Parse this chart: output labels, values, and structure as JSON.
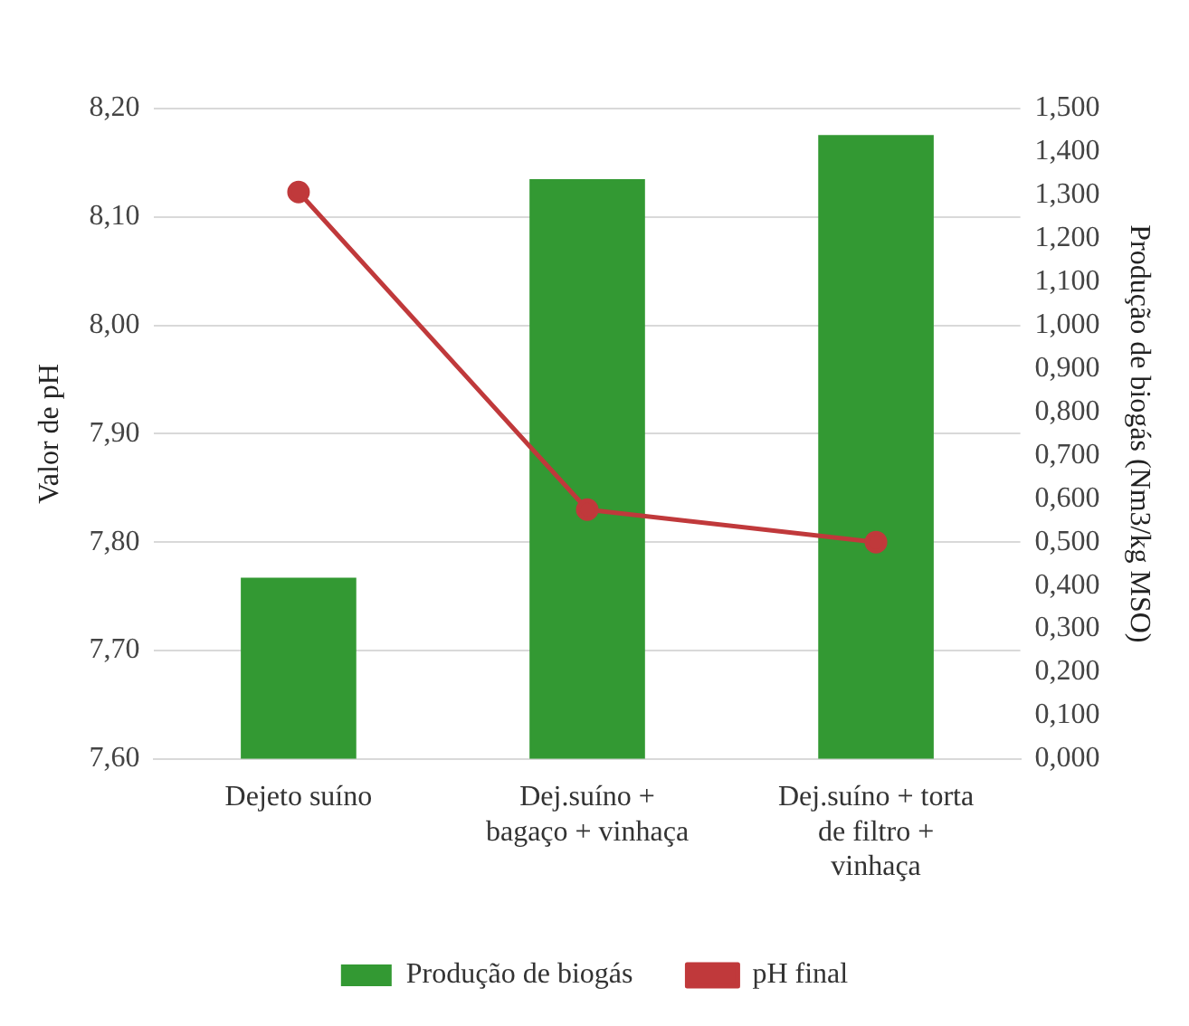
{
  "chart_data": {
    "type": "bar",
    "categories": [
      "Dejeto suíno",
      "Dej.suíno + bagaço + vinhaça",
      "Dej.suíno + torta de filtro + vinhaça"
    ],
    "series": [
      {
        "name": "Produção de biogás",
        "axis": "y2",
        "color": "#339933",
        "values": [
          0.418,
          1.337,
          1.439
        ]
      },
      {
        "name": "pH final",
        "type": "line",
        "color": "#c0393b",
        "values": [
          8.123,
          7.83,
          7.8
        ]
      }
    ],
    "ylabel": "Valor de pH",
    "y2label": "Produção de biogás (Nm3/kg MSO)",
    "ylim": [
      7.6,
      8.2
    ],
    "yticks": [
      {
        "value": 7.6,
        "label": "7,60"
      },
      {
        "value": 7.7,
        "label": "7,70"
      },
      {
        "value": 7.8,
        "label": "7,80"
      },
      {
        "value": 7.9,
        "label": "7,90"
      },
      {
        "value": 8.0,
        "label": "8,00"
      },
      {
        "value": 8.1,
        "label": "8,10"
      },
      {
        "value": 8.2,
        "label": "8,20"
      }
    ],
    "y2lim": [
      0,
      1.5
    ],
    "y2ticks": [
      {
        "value": 0,
        "label": "0,000"
      },
      {
        "value": 0.1,
        "label": "0,100"
      },
      {
        "value": 0.2,
        "label": "0,200"
      },
      {
        "value": 0.3,
        "label": "0,300"
      },
      {
        "value": 0.4,
        "label": "0,400"
      },
      {
        "value": 0.5,
        "label": "0,500"
      },
      {
        "value": 0.6,
        "label": "0,600"
      },
      {
        "value": 0.7,
        "label": "0,700"
      },
      {
        "value": 0.8,
        "label": "0,800"
      },
      {
        "value": 0.9,
        "label": "0,900"
      },
      {
        "value": 1.0,
        "label": "1,000"
      },
      {
        "value": 1.1,
        "label": "1,100"
      },
      {
        "value": 1.2,
        "label": "1,200"
      },
      {
        "value": 1.3,
        "label": "1,300"
      },
      {
        "value": 1.4,
        "label": "1,400"
      },
      {
        "value": 1.5,
        "label": "1,500"
      }
    ],
    "grid": "y",
    "legend": "bottom",
    "marker": "circle",
    "line_style": "solid"
  }
}
